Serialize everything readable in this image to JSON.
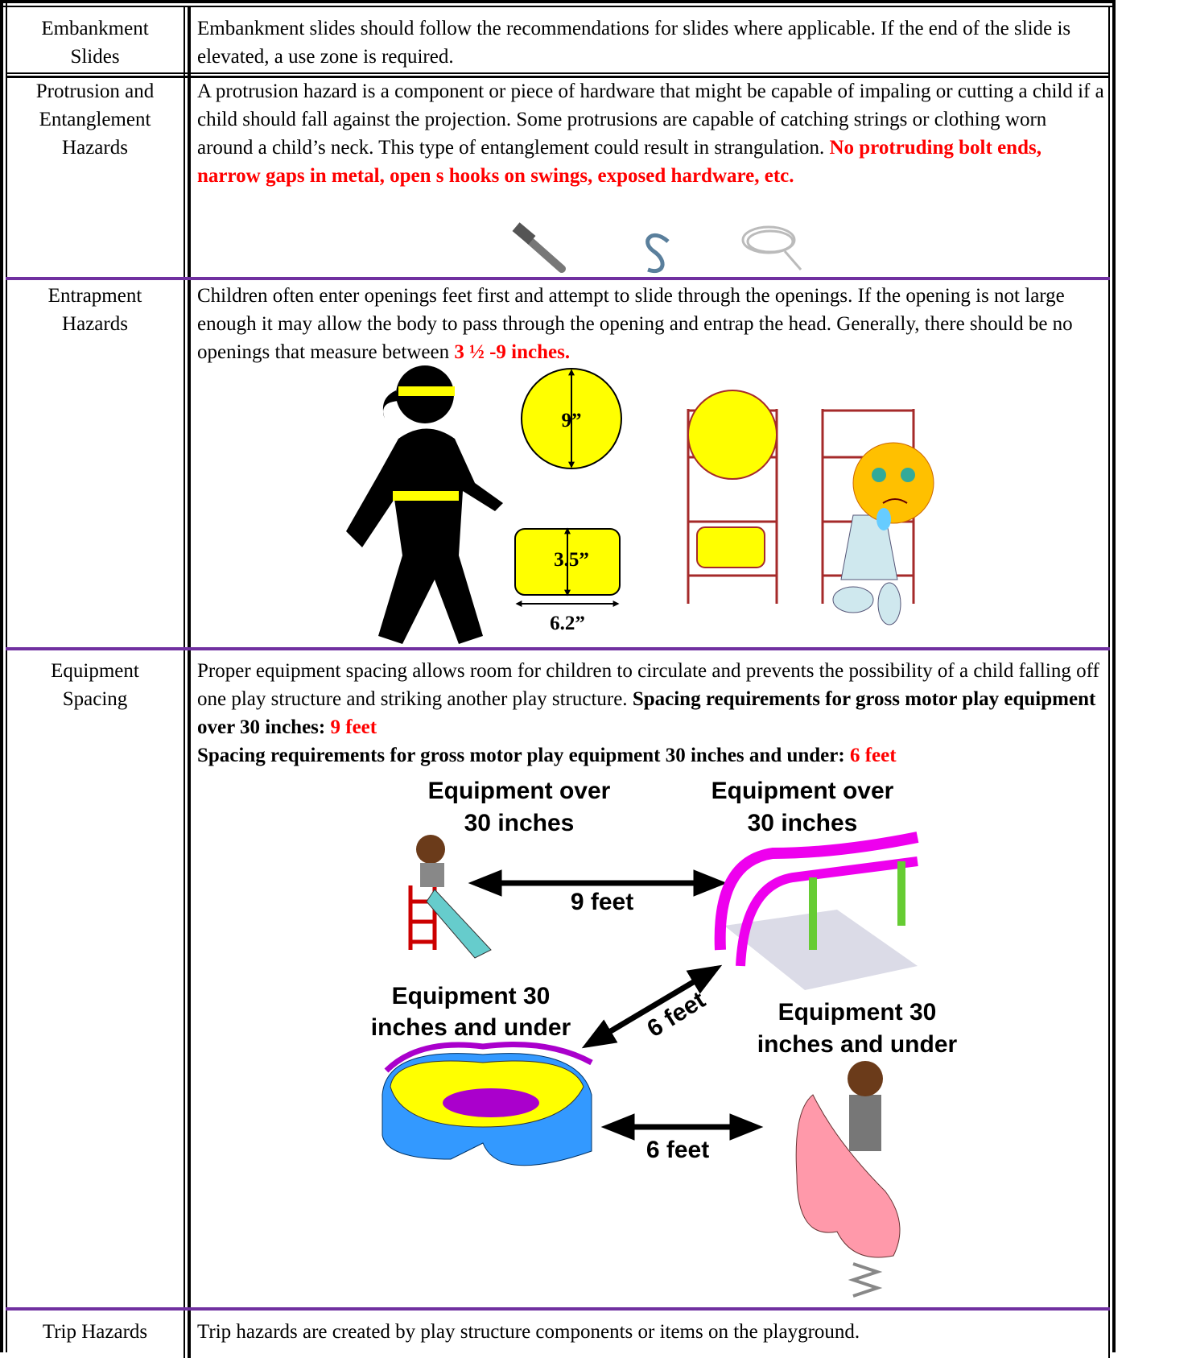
{
  "table": {
    "rows": [
      {
        "label": "Embankment Slides",
        "text": [
          "Embankment slides should follow the recommendations for slides where applicable.  If the end of the slide is elevated, a use zone is required."
        ]
      },
      {
        "label": "Protrusion and Entanglement Hazards",
        "text": [
          " A protrusion hazard is a component or piece of hardware that might be capable of impaling or cutting a child if a child should fall against the projection.  Some protrusions are capable of catching strings or clothing worn around a child’s neck.  This type of entanglement could result in strangulation. ",
          "No protruding bolt ends, narrow gaps in metal, open s hooks on swings, exposed hardware, etc."
        ]
      },
      {
        "label": "Entrapment Hazards",
        "text": [
          "Children often enter openings feet first and attempt to slide through the openings.  If the opening is not large enough it may allow the body to pass through the opening and entrap the head. Generally, there should be no openings that measure between ",
          "3 ½ -9 inches."
        ]
      },
      {
        "label": "Equipment Spacing",
        "text": [
          "Proper equipment spacing allows room for children to circulate and prevents the possibility of a child falling off one play structure and striking another play structure. ",
          "Spacing requirements for  gross motor play equipment over 30 inches: ",
          "9 feet",
          "Spacing requirements for gross motor play  equipment 30 inches and under: ",
          "6 feet"
        ]
      },
      {
        "label": "Trip Hazards",
        "text": [
          "Trip hazards are created by play structure components or items on the playground."
        ]
      }
    ]
  },
  "figures": {
    "entrapment": {
      "circle_label": "9”",
      "rect_height_label": "3.5”",
      "rect_width_label": "6.2”"
    },
    "spacing": {
      "top_left_label": [
        "Equipment over",
        "30 inches"
      ],
      "top_right_label": [
        "Equipment over",
        "30 inches"
      ],
      "bottom_left_label": [
        "Equipment 30",
        "inches and under"
      ],
      "bottom_right_label": [
        "Equipment 30",
        "inches and under"
      ],
      "distance_top": "9 feet",
      "distance_diagonal": "6 feet",
      "distance_bottom": "6 feet"
    }
  }
}
